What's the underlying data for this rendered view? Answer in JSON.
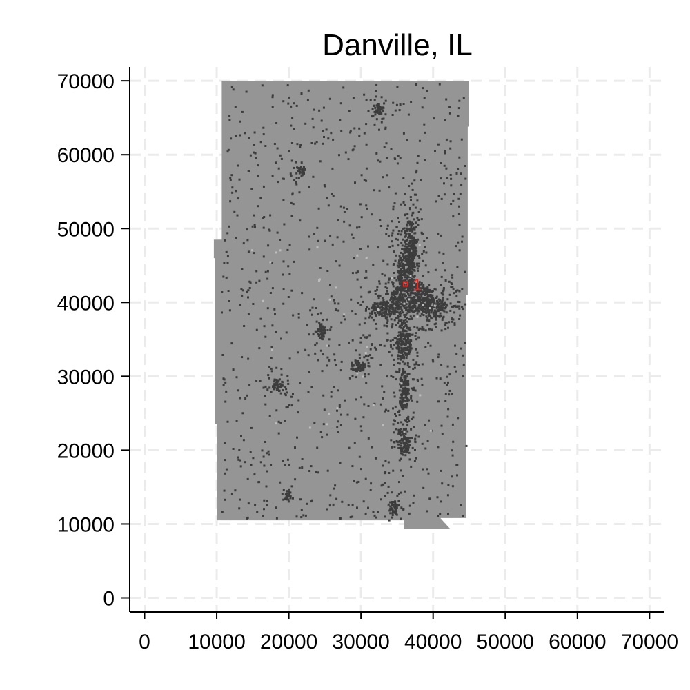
{
  "chart_data": {
    "type": "heatmap",
    "title": "Danville, IL",
    "xlabel": "",
    "ylabel": "",
    "xlim": [
      0,
      70000
    ],
    "ylim": [
      0,
      70000
    ],
    "x_ticks": [
      0,
      10000,
      20000,
      30000,
      40000,
      50000,
      60000,
      70000
    ],
    "y_ticks": [
      0,
      10000,
      20000,
      30000,
      40000,
      50000,
      60000,
      70000
    ],
    "x_tick_labels": [
      "0",
      "10000",
      "20000",
      "30000",
      "40000",
      "50000",
      "60000",
      "70000"
    ],
    "y_tick_labels": [
      "0",
      "10000",
      "20000",
      "30000",
      "40000",
      "50000",
      "60000",
      "70000"
    ],
    "grid": true,
    "region_outline": [
      [
        10700,
        70000
      ],
      [
        45000,
        70000
      ],
      [
        45000,
        63800
      ],
      [
        44800,
        63800
      ],
      [
        44800,
        41000
      ],
      [
        44600,
        41000
      ],
      [
        44600,
        10800
      ],
      [
        41000,
        10800
      ],
      [
        42400,
        9300
      ],
      [
        36000,
        9300
      ],
      [
        36000,
        10500
      ],
      [
        10000,
        10500
      ],
      [
        10000,
        23500
      ],
      [
        9800,
        23500
      ],
      [
        9800,
        46000
      ],
      [
        9600,
        46000
      ],
      [
        9600,
        48500
      ],
      [
        10700,
        48500
      ],
      [
        10700,
        56000
      ],
      [
        10700,
        70000
      ]
    ],
    "dense_clusters": [
      {
        "x": 37000,
        "y": 40800,
        "rx": 3000,
        "ry": 2000
      },
      {
        "x": 36200,
        "y": 44500,
        "rx": 1200,
        "ry": 3000
      },
      {
        "x": 35800,
        "y": 35000,
        "rx": 1100,
        "ry": 2500
      },
      {
        "x": 35800,
        "y": 28200,
        "rx": 700,
        "ry": 2800
      },
      {
        "x": 35800,
        "y": 21300,
        "rx": 900,
        "ry": 1800
      },
      {
        "x": 33000,
        "y": 39200,
        "rx": 1800,
        "ry": 1000
      },
      {
        "x": 29500,
        "y": 31500,
        "rx": 1000,
        "ry": 800
      },
      {
        "x": 18300,
        "y": 29000,
        "rx": 700,
        "ry": 900
      },
      {
        "x": 32400,
        "y": 66300,
        "rx": 600,
        "ry": 800
      },
      {
        "x": 21600,
        "y": 58000,
        "rx": 500,
        "ry": 500
      },
      {
        "x": 24400,
        "y": 36300,
        "rx": 500,
        "ry": 1100
      },
      {
        "x": 19800,
        "y": 14000,
        "rx": 400,
        "ry": 600
      },
      {
        "x": 34400,
        "y": 12400,
        "rx": 500,
        "ry": 900
      },
      {
        "x": 40000,
        "y": 39500,
        "rx": 1800,
        "ry": 1300
      },
      {
        "x": 36700,
        "y": 48000,
        "rx": 800,
        "ry": 3200
      }
    ],
    "highlight": {
      "label": "1",
      "x": 36200,
      "y": 42500,
      "color": "#e8251f"
    },
    "colors": {
      "region": "#959595",
      "cells": "#3c3c3c",
      "light_cells": "#bdbdbd",
      "grid": "#ebebeb",
      "axis": "#000000",
      "highlight": "#e8251f"
    }
  }
}
